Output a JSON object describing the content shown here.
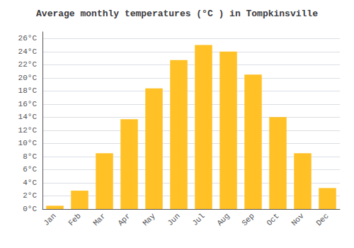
{
  "chart_data": {
    "type": "bar",
    "title": "Average monthly temperatures (°C ) in Tompkinsville",
    "categories": [
      "Jan",
      "Feb",
      "Mar",
      "Apr",
      "May",
      "Jun",
      "Jul",
      "Aug",
      "Sep",
      "Oct",
      "Nov",
      "Dec"
    ],
    "values": [
      0.5,
      2.8,
      8.5,
      13.7,
      18.4,
      22.7,
      25.0,
      24.0,
      20.5,
      14.0,
      8.5,
      3.2
    ],
    "color": "#FFC125",
    "ylim": [
      0,
      27
    ],
    "yticks": [
      {
        "value": 0,
        "label": "0°C"
      },
      {
        "value": 2,
        "label": "2°C"
      },
      {
        "value": 4,
        "label": "4°C"
      },
      {
        "value": 6,
        "label": "6°C"
      },
      {
        "value": 8,
        "label": "8°C"
      },
      {
        "value": 10,
        "label": "10°C"
      },
      {
        "value": 12,
        "label": "12°C"
      },
      {
        "value": 14,
        "label": "14°C"
      },
      {
        "value": 16,
        "label": "16°C"
      },
      {
        "value": 18,
        "label": "18°C"
      },
      {
        "value": 20,
        "label": "20°C"
      },
      {
        "value": 22,
        "label": "22°C"
      },
      {
        "value": 24,
        "label": "24°C"
      },
      {
        "value": 26,
        "label": "26°C"
      }
    ],
    "grid": true
  }
}
